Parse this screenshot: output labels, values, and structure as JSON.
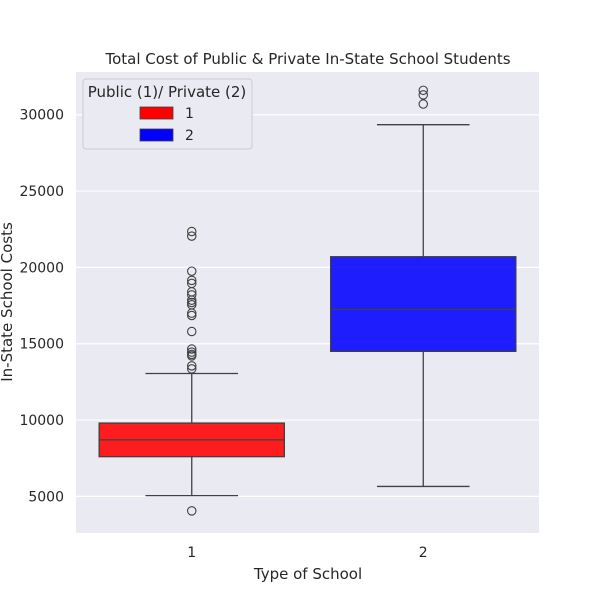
{
  "chart_data": {
    "type": "box",
    "title": "Total Cost of Public & Private In-State School Students",
    "xlabel": "Type of School",
    "ylabel": "In-State School Costs",
    "categories": [
      "1",
      "2"
    ],
    "ylim": [
      2600,
      32800
    ],
    "yticks": [
      5000,
      10000,
      15000,
      20000,
      25000,
      30000
    ],
    "grid": true,
    "legend": {
      "title": "Public (1)/ Private (2)",
      "placement": "top-left",
      "entries": [
        {
          "label": "1",
          "color": "#ff0000"
        },
        {
          "label": "2",
          "color": "#0000ff"
        }
      ]
    },
    "boxes": [
      {
        "category": "1",
        "color": "#ff0000",
        "whisker_low": 5050,
        "q1": 7600,
        "median": 8700,
        "q3": 9800,
        "whisker_high": 13050,
        "outliers": [
          4050,
          13350,
          13550,
          14200,
          14300,
          14450,
          14650,
          15800,
          16850,
          17000,
          17550,
          17700,
          17850,
          18200,
          18400,
          18950,
          19150,
          19750,
          22050,
          22350
        ]
      },
      {
        "category": "2",
        "color": "#0000ff",
        "whisker_low": 5650,
        "q1": 14500,
        "median": 17250,
        "q3": 20700,
        "whisker_high": 29350,
        "outliers": [
          30700,
          31300,
          31600
        ]
      }
    ]
  },
  "colors": {
    "plot_background": "#eaeaf2",
    "grid": "#ffffff",
    "line": "#404040"
  }
}
